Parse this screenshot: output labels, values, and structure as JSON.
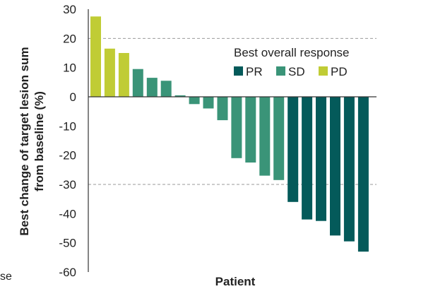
{
  "chart_data": {
    "type": "bar",
    "ylabel": [
      "Best change of target lesion sum",
      "from baseline (%)"
    ],
    "xlabel": "Patient",
    "ylim": [
      -60,
      30
    ],
    "yticks": [
      30,
      20,
      10,
      0,
      -10,
      -20,
      -30,
      -40,
      -50,
      -60
    ],
    "grid": "dashed lines at 20 and -30",
    "legend": {
      "title": "Best overall response",
      "placement": "top-right",
      "entries": [
        {
          "key": "PR",
          "label": "PR",
          "color": "#045a5a"
        },
        {
          "key": "SD",
          "label": "SD",
          "color": "#3a9478"
        },
        {
          "key": "PD",
          "label": "PD",
          "color": "#c0cc35"
        }
      ]
    },
    "bars": [
      {
        "value": 27.5,
        "response": "PD"
      },
      {
        "value": 16.5,
        "response": "PD"
      },
      {
        "value": 15,
        "response": "PD"
      },
      {
        "value": 9.5,
        "response": "SD"
      },
      {
        "value": 6.5,
        "response": "SD"
      },
      {
        "value": 5.5,
        "response": "SD"
      },
      {
        "value": 0.5,
        "response": "SD"
      },
      {
        "value": -2.5,
        "response": "SD"
      },
      {
        "value": -4,
        "response": "SD"
      },
      {
        "value": -8,
        "response": "SD"
      },
      {
        "value": -21,
        "response": "SD"
      },
      {
        "value": -22.5,
        "response": "SD"
      },
      {
        "value": -27,
        "response": "SD"
      },
      {
        "value": -28.5,
        "response": "SD"
      },
      {
        "value": -36,
        "response": "PR"
      },
      {
        "value": -42,
        "response": "PR"
      },
      {
        "value": -42.5,
        "response": "PR"
      },
      {
        "value": -47.5,
        "response": "PR"
      },
      {
        "value": -49.5,
        "response": "PR"
      },
      {
        "value": -53,
        "response": "PR"
      }
    ]
  },
  "stray_text": "se"
}
